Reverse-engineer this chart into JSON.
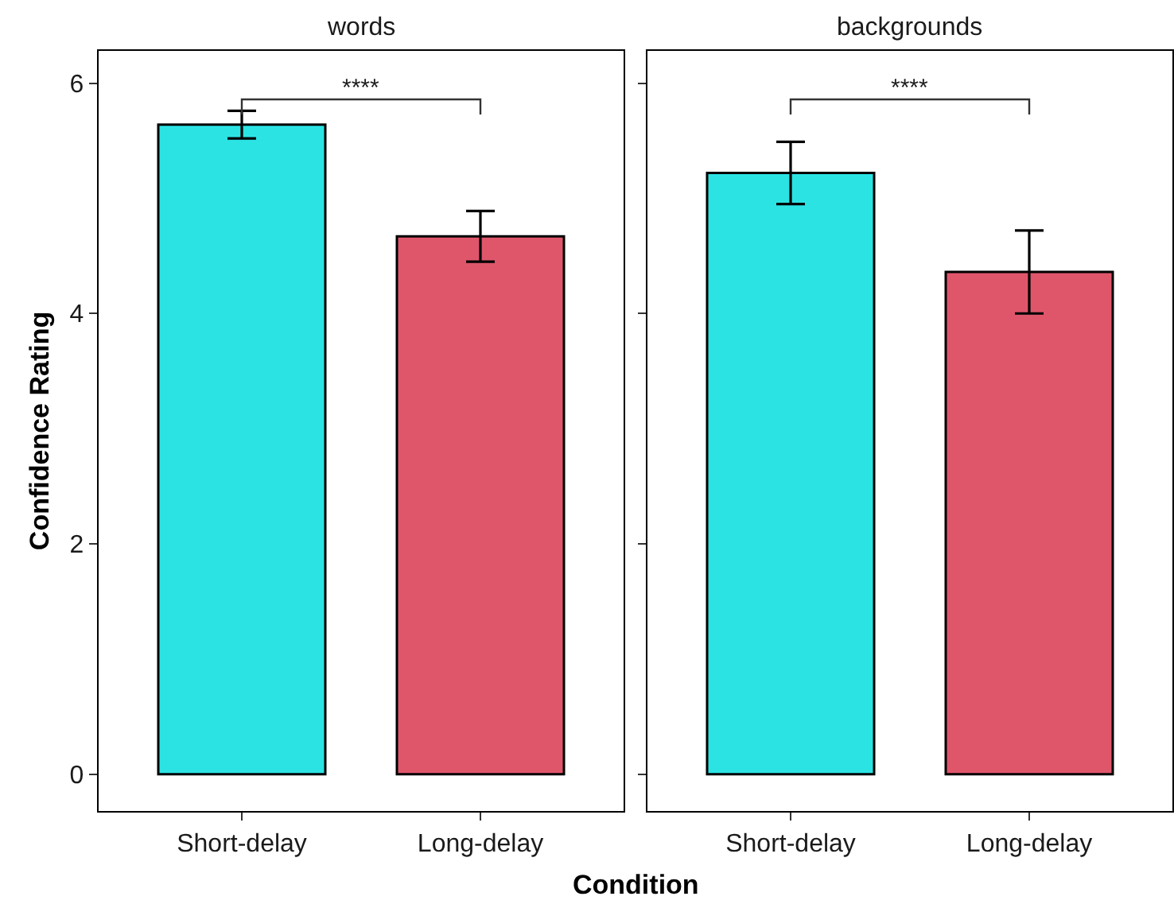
{
  "chart_data": [
    {
      "type": "bar",
      "title": "words",
      "ylabel": "Confidence Rating",
      "xlabel": "Condition",
      "categories": [
        "Short-delay",
        "Long-delay"
      ],
      "values": [
        5.64,
        4.67
      ],
      "colors": [
        "#2ce3e4",
        "#df566b"
      ],
      "errors": [
        0.12,
        0.22
      ],
      "ylim": [
        -0.32,
        6.28
      ],
      "yticks": [
        0,
        2,
        4,
        6
      ],
      "annotations": [
        "****"
      ]
    },
    {
      "type": "bar",
      "title": "backgrounds",
      "categories": [
        "Short-delay",
        "Long-delay"
      ],
      "values": [
        5.22,
        4.36
      ],
      "colors": [
        "#2ce3e4",
        "#df566b"
      ],
      "errors": [
        0.27,
        0.36
      ],
      "ylim": [
        -0.32,
        6.28
      ],
      "yticks": [
        0,
        2,
        4,
        6
      ],
      "tick_labels": "x",
      "annotations": [
        "****"
      ]
    }
  ]
}
